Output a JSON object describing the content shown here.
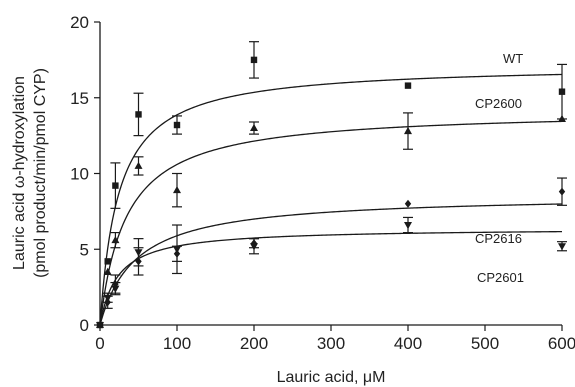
{
  "chart_data": {
    "type": "scatter",
    "title": "",
    "xlabel": "Lauric acid, μM",
    "ylabel_line1": "Lauric acid ω-hydroxylation",
    "ylabel_line2": "(pmol product/min/pmol CYP)",
    "xlim": [
      0,
      600
    ],
    "ylim": [
      0,
      20
    ],
    "xticks": [
      0,
      100,
      200,
      300,
      400,
      500,
      600
    ],
    "yticks": [
      0,
      5,
      10,
      15,
      20
    ],
    "grid": false,
    "legend": "none",
    "fit_model": "Michaelis-Menten",
    "series": [
      {
        "name": "WT",
        "marker": "square",
        "Vmax": 17.2,
        "Km": 24,
        "points": [
          {
            "x": 0,
            "y": 0,
            "err": 0
          },
          {
            "x": 10,
            "y": 4.2,
            "err": 0
          },
          {
            "x": 20,
            "y": 9.2,
            "err": 1.5
          },
          {
            "x": 50,
            "y": 13.9,
            "err": 1.4
          },
          {
            "x": 100,
            "y": 13.2,
            "err": 0.6
          },
          {
            "x": 200,
            "y": 17.5,
            "err": 1.2
          },
          {
            "x": 400,
            "y": 15.8,
            "err": 0
          },
          {
            "x": 600,
            "y": 15.4,
            "err": 1.8
          }
        ]
      },
      {
        "name": "CP2600",
        "marker": "triangle",
        "Vmax": 14.2,
        "Km": 34,
        "points": [
          {
            "x": 0,
            "y": 0,
            "err": 0
          },
          {
            "x": 10,
            "y": 3.5,
            "err": 0
          },
          {
            "x": 20,
            "y": 5.6,
            "err": 0.5
          },
          {
            "x": 50,
            "y": 10.5,
            "err": 0.6
          },
          {
            "x": 100,
            "y": 8.9,
            "err": 1.1
          },
          {
            "x": 200,
            "y": 13.0,
            "err": 0.4
          },
          {
            "x": 400,
            "y": 12.8,
            "err": 1.2
          },
          {
            "x": 600,
            "y": 13.6,
            "err": 0
          }
        ]
      },
      {
        "name": "CP2616",
        "marker": "diamond",
        "Vmax": 8.6,
        "Km": 46,
        "points": [
          {
            "x": 0,
            "y": 0,
            "err": 0
          },
          {
            "x": 10,
            "y": 1.5,
            "err": 0.4
          },
          {
            "x": 20,
            "y": 2.7,
            "err": 0.6
          },
          {
            "x": 50,
            "y": 4.2,
            "err": 0.9
          },
          {
            "x": 100,
            "y": 4.7,
            "err": 0.5
          },
          {
            "x": 200,
            "y": 5.4,
            "err": 0.3
          },
          {
            "x": 400,
            "y": 8.0,
            "err": 0
          },
          {
            "x": 600,
            "y": 8.8,
            "err": 0.9
          }
        ]
      },
      {
        "name": "CP2601",
        "marker": "down-triangle",
        "Vmax": 6.4,
        "Km": 23,
        "points": [
          {
            "x": 0,
            "y": 0,
            "err": 0
          },
          {
            "x": 10,
            "y": 1.8,
            "err": 0.3
          },
          {
            "x": 20,
            "y": 2.4,
            "err": 0.4
          },
          {
            "x": 50,
            "y": 4.8,
            "err": 0.9
          },
          {
            "x": 100,
            "y": 5.0,
            "err": 1.6
          },
          {
            "x": 200,
            "y": 5.2,
            "err": 0.5
          },
          {
            "x": 400,
            "y": 6.6,
            "err": 0.5
          },
          {
            "x": 600,
            "y": 5.2,
            "err": 0.3
          }
        ]
      }
    ],
    "colors": {
      "ink": "#1a1a1a",
      "background": "#ffffff"
    }
  }
}
